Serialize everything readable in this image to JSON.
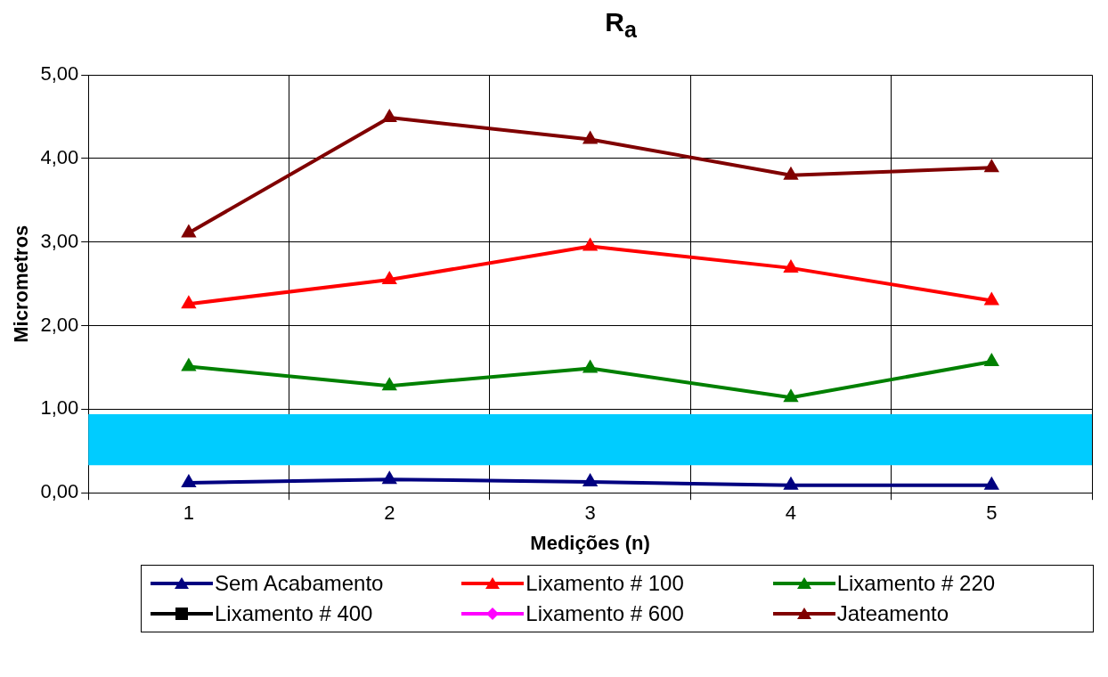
{
  "chart_data": {
    "type": "line",
    "title": "R$_{a}$",
    "xlabel": "Medições (n)",
    "ylabel": "Micrometros",
    "categories": [
      "1",
      "2",
      "3",
      "4",
      "5"
    ],
    "series": [
      {
        "name": "Sem Acabamento",
        "color": "#000080",
        "marker": "triangle",
        "values": [
          0.12,
          0.16,
          0.13,
          0.09,
          0.09
        ]
      },
      {
        "name": "Lixamento # 100",
        "color": "#ff0000",
        "marker": "triangle",
        "values": [
          2.26,
          2.55,
          2.95,
          2.69,
          2.3
        ]
      },
      {
        "name": "Lixamento # 220",
        "color": "#008000",
        "marker": "triangle",
        "values": [
          1.51,
          1.28,
          1.49,
          1.14,
          1.57
        ]
      },
      {
        "name": "Lixamento # 400",
        "color": "#000000",
        "marker": "square",
        "values": [
          null,
          null,
          null,
          null,
          null
        ]
      },
      {
        "name": "Lixamento # 600",
        "color": "#ff00ff",
        "marker": "diamond",
        "values": [
          null,
          null,
          null,
          null,
          null
        ]
      },
      {
        "name": "Jateamento",
        "color": "#800000",
        "marker": "triangle",
        "values": [
          3.11,
          4.49,
          4.23,
          3.8,
          3.89
        ]
      }
    ],
    "ylim": [
      0,
      5
    ],
    "yticks": [
      {
        "value": 0,
        "label": "0,00"
      },
      {
        "value": 1,
        "label": "1,00"
      },
      {
        "value": 2,
        "label": "2,00"
      },
      {
        "value": 3,
        "label": "3,00"
      },
      {
        "value": 4,
        "label": "4,00"
      },
      {
        "value": 5,
        "label": "5,00"
      }
    ],
    "bands": [
      {
        "axis": "y",
        "from": 0.33,
        "to": 0.94,
        "color": "#00ccff"
      }
    ],
    "grid": true,
    "legend": "bottom",
    "line_style": "solid"
  }
}
